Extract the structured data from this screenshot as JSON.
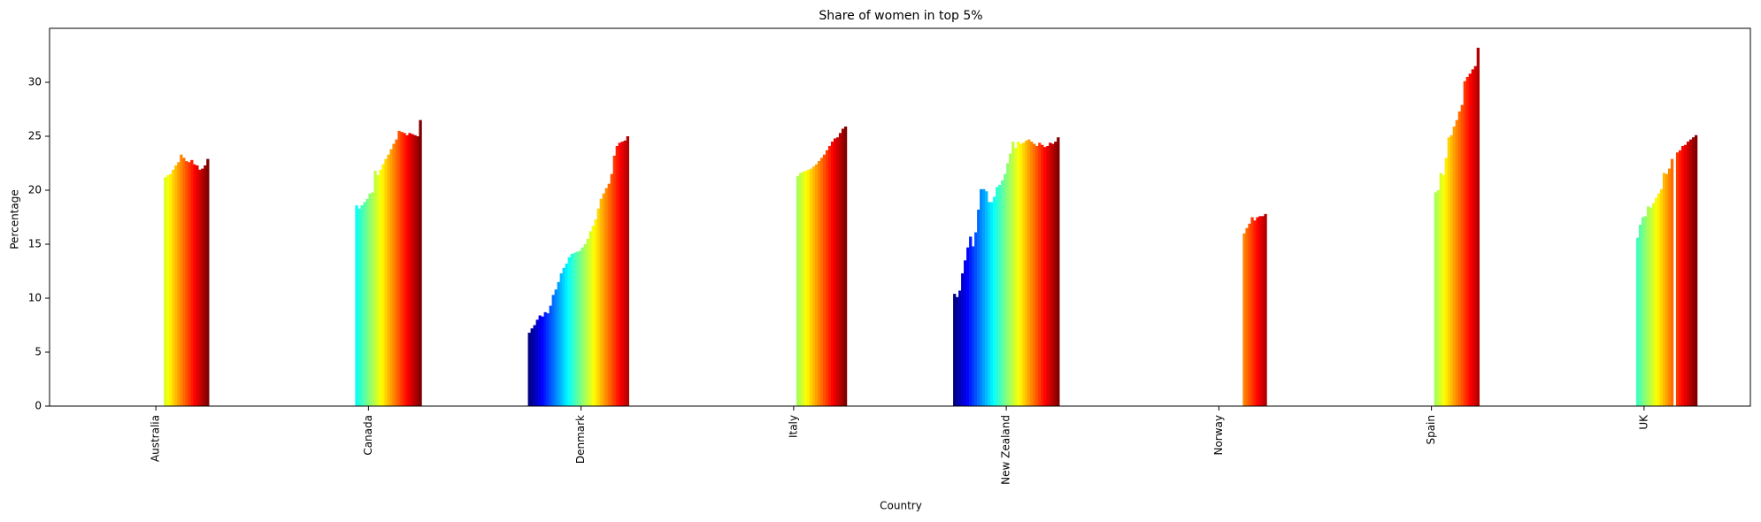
{
  "chart_data": {
    "type": "bar",
    "title": "Share of women in top 5%",
    "x_label": "Country",
    "y_label": "Percentage",
    "categories": [
      "Australia",
      "Canada",
      "Denmark",
      "Italy",
      "New Zealand",
      "Norway",
      "Spain",
      "UK"
    ],
    "colormap": "jet",
    "ylim": [
      0,
      35
    ],
    "yticks": [
      0,
      5,
      10,
      15,
      20,
      25,
      30
    ],
    "series": [
      {
        "values": [
          null,
          null,
          6.8,
          null,
          10.4,
          null,
          null,
          null
        ]
      },
      {
        "values": [
          null,
          null,
          7.2,
          null,
          10.1,
          null,
          null,
          null
        ]
      },
      {
        "values": [
          null,
          null,
          7.5,
          null,
          10.7,
          null,
          null,
          null
        ]
      },
      {
        "values": [
          null,
          null,
          8.0,
          null,
          12.3,
          null,
          null,
          null
        ]
      },
      {
        "values": [
          null,
          null,
          8.4,
          null,
          13.5,
          null,
          null,
          null
        ]
      },
      {
        "values": [
          null,
          null,
          8.3,
          null,
          14.7,
          null,
          null,
          null
        ]
      },
      {
        "values": [
          null,
          null,
          8.7,
          null,
          15.7,
          null,
          null,
          null
        ]
      },
      {
        "values": [
          null,
          null,
          8.6,
          null,
          14.8,
          null,
          null,
          null
        ]
      },
      {
        "values": [
          null,
          null,
          9.3,
          null,
          16.1,
          null,
          null,
          null
        ]
      },
      {
        "values": [
          null,
          null,
          10.3,
          null,
          18.2,
          null,
          null,
          null
        ]
      },
      {
        "values": [
          null,
          null,
          10.8,
          null,
          20.1,
          null,
          null,
          null
        ]
      },
      {
        "values": [
          null,
          null,
          11.5,
          null,
          20.1,
          null,
          null,
          null
        ]
      },
      {
        "values": [
          null,
          null,
          12.3,
          null,
          19.9,
          null,
          null,
          null
        ]
      },
      {
        "values": [
          null,
          null,
          12.8,
          null,
          18.9,
          null,
          null,
          null
        ]
      },
      {
        "values": [
          null,
          null,
          13.2,
          null,
          18.9,
          null,
          null,
          null
        ]
      },
      {
        "values": [
          null,
          18.6,
          13.8,
          null,
          19.4,
          null,
          null,
          null
        ]
      },
      {
        "values": [
          null,
          18.3,
          14.1,
          null,
          20.3,
          null,
          null,
          null
        ]
      },
      {
        "values": [
          null,
          18.6,
          14.2,
          null,
          20.5,
          null,
          null,
          15.6
        ]
      },
      {
        "values": [
          null,
          18.9,
          14.3,
          null,
          20.9,
          null,
          null,
          16.8
        ]
      },
      {
        "values": [
          null,
          19.2,
          14.4,
          null,
          21.5,
          null,
          null,
          17.5
        ]
      },
      {
        "values": [
          null,
          19.7,
          14.7,
          null,
          22.5,
          null,
          null,
          17.6
        ]
      },
      {
        "values": [
          null,
          19.8,
          15.0,
          21.3,
          23.4,
          null,
          19.8,
          18.5
        ]
      },
      {
        "values": [
          null,
          21.8,
          15.5,
          21.6,
          24.5,
          null,
          20.0,
          18.4
        ]
      },
      {
        "values": [
          21.2,
          21.4,
          16.2,
          21.7,
          23.9,
          null,
          21.6,
          18.8
        ]
      },
      {
        "values": [
          21.4,
          21.9,
          16.7,
          21.8,
          24.5,
          null,
          21.4,
          19.3
        ]
      },
      {
        "values": [
          21.5,
          22.4,
          17.3,
          21.9,
          24.3,
          null,
          23.0,
          19.7
        ]
      },
      {
        "values": [
          21.9,
          22.9,
          18.3,
          22.0,
          24.4,
          null,
          24.9,
          20.1
        ]
      },
      {
        "values": [
          22.3,
          23.3,
          19.2,
          22.2,
          24.6,
          null,
          25.1,
          21.6
        ]
      },
      {
        "values": [
          22.6,
          23.8,
          19.7,
          22.4,
          24.7,
          null,
          25.9,
          21.5
        ]
      },
      {
        "values": [
          23.3,
          24.3,
          20.2,
          22.7,
          24.5,
          16.0,
          26.5,
          22.0
        ]
      },
      {
        "values": [
          23.0,
          24.7,
          20.6,
          23.0,
          24.3,
          16.5,
          27.3,
          22.9
        ]
      },
      {
        "values": [
          22.7,
          25.5,
          21.5,
          23.3,
          24.1,
          16.9,
          27.9,
          null
        ]
      },
      {
        "values": [
          22.6,
          25.4,
          23.2,
          23.7,
          24.4,
          17.5,
          30.1,
          23.5
        ]
      },
      {
        "values": [
          22.8,
          25.3,
          24.1,
          24.1,
          24.2,
          17.2,
          30.5,
          23.7
        ]
      },
      {
        "values": [
          22.4,
          25.1,
          24.4,
          24.5,
          24.0,
          17.5,
          30.8,
          24.1
        ]
      },
      {
        "values": [
          22.3,
          25.3,
          24.5,
          24.8,
          24.1,
          17.6,
          31.2,
          24.2
        ]
      },
      {
        "values": [
          21.9,
          25.2,
          24.6,
          24.9,
          24.4,
          17.6,
          31.5,
          24.5
        ]
      },
      {
        "values": [
          22.0,
          25.1,
          25.0,
          25.3,
          24.3,
          17.8,
          33.2,
          24.7
        ]
      },
      {
        "values": [
          22.3,
          25.0,
          null,
          25.7,
          24.5,
          null,
          null,
          24.9
        ]
      },
      {
        "values": [
          22.9,
          26.5,
          null,
          25.9,
          24.9,
          null,
          null,
          25.1
        ]
      }
    ]
  }
}
